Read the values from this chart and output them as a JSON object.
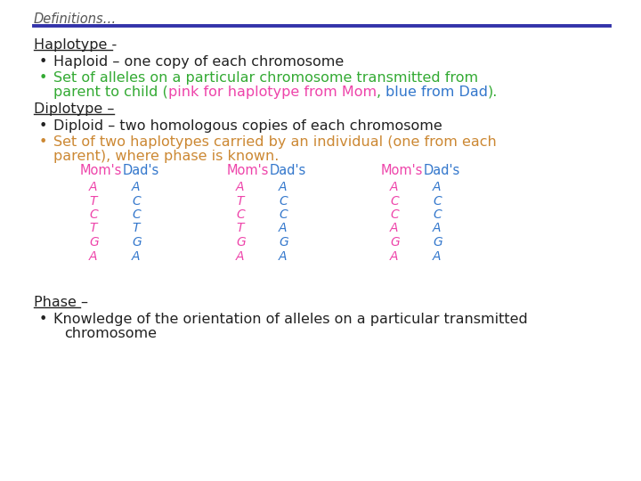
{
  "bg_color": "#ffffff",
  "title": "Definitions…",
  "title_color": "#555555",
  "title_fontsize": 10.5,
  "divider_color": "#3333aa",
  "orange_color": "#cc8833",
  "green_color": "#33aa33",
  "pink_color": "#ee44aa",
  "blue_color": "#3377cc",
  "black_color": "#222222",
  "header_color": "#222222",
  "moms_color": "#ee44aa",
  "dads_color": "#3377cc",
  "body_fontsize": 11.5,
  "small_fontsize": 10.5,
  "allele_fontsize": 10,
  "haplotype_grid": [
    {
      "mom_label": "Mom's",
      "dad_label": "Dad's",
      "mom_alleles": [
        "A",
        "T",
        "C",
        "T",
        "G",
        "A"
      ],
      "dad_alleles": [
        "A",
        "C",
        "C",
        "T",
        "G",
        "A"
      ]
    },
    {
      "mom_label": "Mom's",
      "dad_label": "Dad's",
      "mom_alleles": [
        "A",
        "T",
        "C",
        "T",
        "G",
        "A"
      ],
      "dad_alleles": [
        "A",
        "C",
        "C",
        "A",
        "G",
        "A"
      ]
    },
    {
      "mom_label": "Mom's",
      "dad_label": "Dad's",
      "mom_alleles": [
        "A",
        "C",
        "C",
        "A",
        "G",
        "A"
      ],
      "dad_alleles": [
        "A",
        "C",
        "C",
        "A",
        "G",
        "A"
      ]
    }
  ]
}
